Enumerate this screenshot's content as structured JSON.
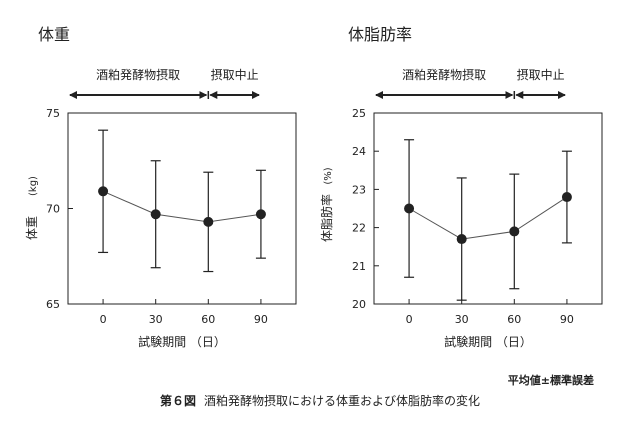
{
  "figure": {
    "number": "第６図",
    "caption": "酒粕発酵物摂取における体重および体脂肪率の変化",
    "note": "平均値±標準誤差"
  },
  "chart_data": [
    {
      "type": "line",
      "title": "体重",
      "xlabel": "試験期間 （日）",
      "ylabel": "体重",
      "yunit": "(kg)",
      "x": [
        0,
        30,
        60,
        90
      ],
      "x_ticks": [
        "0",
        "30",
        "60",
        "90"
      ],
      "ylim": [
        65,
        75
      ],
      "y_ticks": [
        "65",
        "70",
        "75"
      ],
      "series": [
        {
          "values": [
            70.9,
            69.7,
            69.3,
            69.7
          ],
          "errors": [
            3.2,
            2.8,
            2.6,
            2.3
          ]
        }
      ],
      "phases": [
        {
          "label": "酒粕発酵物摂取",
          "from": -20,
          "to": 60
        },
        {
          "label": "摂取中止",
          "from": 60,
          "to": 90
        }
      ],
      "grid": false,
      "marker": "circle",
      "color": "#222222"
    },
    {
      "type": "line",
      "title": "体脂肪率",
      "xlabel": "試験期間 （日）",
      "ylabel": "体脂肪率",
      "yunit": "(%)",
      "x": [
        0,
        30,
        60,
        90
      ],
      "x_ticks": [
        "0",
        "30",
        "60",
        "90"
      ],
      "ylim": [
        20,
        25
      ],
      "y_ticks": [
        "20",
        "21",
        "22",
        "23",
        "24",
        "25"
      ],
      "series": [
        {
          "values": [
            22.5,
            21.7,
            21.9,
            22.8
          ],
          "errors": [
            1.8,
            1.6,
            1.5,
            1.2
          ]
        }
      ],
      "phases": [
        {
          "label": "酒粕発酵物摂取",
          "from": -20,
          "to": 60
        },
        {
          "label": "摂取中止",
          "from": 60,
          "to": 90
        }
      ],
      "grid": false,
      "marker": "circle",
      "color": "#222222"
    }
  ]
}
